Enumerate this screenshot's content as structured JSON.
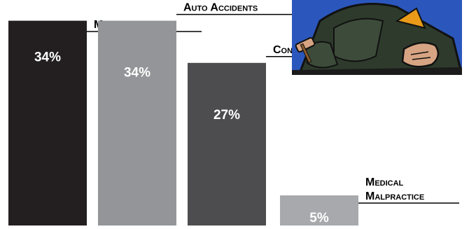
{
  "chart_data": {
    "type": "bar",
    "categories": [
      "Miscellaneous",
      "Auto Accidents",
      "Contracts",
      "Medical Malpractice"
    ],
    "label_lines": [
      [
        "Miscellaneous"
      ],
      [
        "Auto Accidents"
      ],
      [
        "Contracts"
      ],
      [
        "Medical",
        "Malpractice"
      ]
    ],
    "values": [
      34,
      34,
      27,
      5
    ],
    "value_labels": [
      "34%",
      "34%",
      "27%",
      "5%"
    ],
    "unit": "%",
    "colors": [
      "#231f20",
      "#939598",
      "#4d4d4f",
      "#a7a9ac"
    ],
    "value_label_colors": [
      "#ffffff",
      "#ffffff",
      "#ffffff",
      "#ffffff"
    ],
    "title": "",
    "xlabel": "",
    "ylabel": "",
    "grid": false,
    "legend": "none"
  },
  "illustration": {
    "subject": "cartoon-judge-with-gavel",
    "colors": {
      "sky": "#2f5fc8",
      "robe": "#2e3b2c",
      "skin": "#d7a483",
      "accent": "#e89a18",
      "outline": "#111111"
    }
  }
}
